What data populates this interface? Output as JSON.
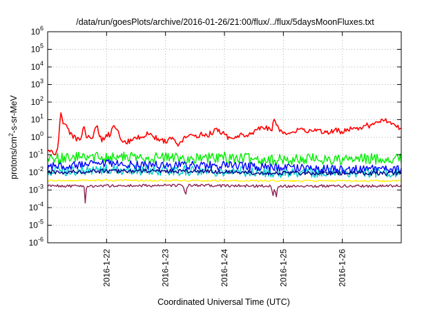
{
  "chart_data": {
    "type": "line",
    "title": "/data/run/goesPlots/archive/2016-01-26/21:00/flux/../flux/5daysMoonFluxes.txt",
    "xlabel": "Coordinated Universal Time (UTC)",
    "ylabel": "protons/cm²-s-sr-MeV",
    "ylabel_parts": {
      "pre": "protons/cm",
      "sup": "2",
      "post": "-s-sr-MeV"
    },
    "yscale": "log",
    "ylim": [
      1e-06,
      1000000.0
    ],
    "xlim": [
      0,
      6
    ],
    "x_unit": "days since 2016-01-21 00:00 UTC",
    "grid": true,
    "y_ticks": [
      {
        "value": 1e-06,
        "base": "10",
        "exp": "-6"
      },
      {
        "value": 1e-05,
        "base": "10",
        "exp": "-5"
      },
      {
        "value": 0.0001,
        "base": "10",
        "exp": "-4"
      },
      {
        "value": 0.001,
        "base": "10",
        "exp": "-3"
      },
      {
        "value": 0.01,
        "base": "10",
        "exp": "-2"
      },
      {
        "value": 0.1,
        "base": "10",
        "exp": "-1"
      },
      {
        "value": 1,
        "base": "10",
        "exp": "0"
      },
      {
        "value": 10,
        "base": "10",
        "exp": "1"
      },
      {
        "value": 100,
        "base": "10",
        "exp": "2"
      },
      {
        "value": 1000,
        "base": "10",
        "exp": "3"
      },
      {
        "value": 10000,
        "base": "10",
        "exp": "4"
      },
      {
        "value": 100000,
        "base": "10",
        "exp": "5"
      },
      {
        "value": 1000000,
        "base": "10",
        "exp": "6"
      }
    ],
    "x_ticks": [
      {
        "value": 1,
        "label": "2016-1-22"
      },
      {
        "value": 2,
        "label": "2016-1-23"
      },
      {
        "value": 3,
        "label": "2016-1-24"
      },
      {
        "value": 4,
        "label": "2016-1-25"
      },
      {
        "value": 5,
        "label": "2016-1-26"
      }
    ],
    "series": [
      {
        "name": "",
        "color": "#ff0000",
        "noise": 0.15,
        "points": [
          [
            0.0,
            0.15
          ],
          [
            0.15,
            0.14
          ],
          [
            0.17,
            0.19
          ],
          [
            0.22,
            25
          ],
          [
            0.26,
            8
          ],
          [
            0.35,
            2.5
          ],
          [
            0.45,
            1.0
          ],
          [
            0.55,
            0.6
          ],
          [
            0.62,
            4
          ],
          [
            0.66,
            1.0
          ],
          [
            0.78,
            1.2
          ],
          [
            0.82,
            6
          ],
          [
            0.88,
            1.5
          ],
          [
            0.92,
            0.7
          ],
          [
            1.0,
            1.5
          ],
          [
            1.06,
            1.2
          ],
          [
            1.12,
            5
          ],
          [
            1.18,
            2.5
          ],
          [
            1.22,
            1.0
          ],
          [
            1.3,
            0.5
          ],
          [
            1.4,
            0.6
          ],
          [
            1.5,
            0.8
          ],
          [
            1.6,
            1.2
          ],
          [
            1.7,
            1.5
          ],
          [
            1.8,
            1.0
          ],
          [
            1.9,
            0.8
          ],
          [
            2.0,
            0.6
          ],
          [
            2.08,
            1.0
          ],
          [
            2.2,
            0.4
          ],
          [
            2.3,
            0.8
          ],
          [
            2.4,
            1.2
          ],
          [
            2.5,
            1.0
          ],
          [
            2.6,
            1.5
          ],
          [
            2.7,
            1.2
          ],
          [
            2.8,
            2.0
          ],
          [
            2.9,
            2.5
          ],
          [
            3.0,
            1.5
          ],
          [
            3.08,
            0.8
          ],
          [
            3.2,
            0.8
          ],
          [
            3.3,
            1.5
          ],
          [
            3.4,
            1.5
          ],
          [
            3.5,
            2.0
          ],
          [
            3.6,
            3.0
          ],
          [
            3.7,
            4.0
          ],
          [
            3.8,
            2.0
          ],
          [
            3.84,
            10
          ],
          [
            3.9,
            5
          ],
          [
            3.95,
            2.0
          ],
          [
            4.1,
            1.8
          ],
          [
            4.2,
            2.5
          ],
          [
            4.3,
            3.0
          ],
          [
            4.4,
            2.5
          ],
          [
            4.5,
            2.0
          ],
          [
            4.6,
            2.5
          ],
          [
            4.7,
            1.8
          ],
          [
            4.8,
            2.0
          ],
          [
            4.9,
            2.5
          ],
          [
            5.0,
            2.0
          ],
          [
            5.1,
            3.0
          ],
          [
            5.2,
            2.8
          ],
          [
            5.3,
            3.5
          ],
          [
            5.4,
            5.0
          ],
          [
            5.5,
            4.0
          ],
          [
            5.6,
            8.0
          ],
          [
            5.7,
            10
          ],
          [
            5.8,
            8.0
          ],
          [
            5.9,
            5.0
          ],
          [
            6.0,
            3.0
          ]
        ]
      },
      {
        "name": "",
        "color": "#00ee00",
        "noise": 0.32,
        "points": [
          [
            0.0,
            0.06
          ],
          [
            0.5,
            0.07
          ],
          [
            1.0,
            0.08
          ],
          [
            1.5,
            0.07
          ],
          [
            2.0,
            0.07
          ],
          [
            2.5,
            0.06
          ],
          [
            3.0,
            0.07
          ],
          [
            3.5,
            0.06
          ],
          [
            4.0,
            0.05
          ],
          [
            4.5,
            0.06
          ],
          [
            5.0,
            0.05
          ],
          [
            5.5,
            0.06
          ],
          [
            6.0,
            0.06
          ]
        ]
      },
      {
        "name": "",
        "color": "#00cccc",
        "noise": 0.3,
        "points": [
          [
            0.0,
            0.012
          ],
          [
            1.0,
            0.014
          ],
          [
            2.0,
            0.013
          ],
          [
            3.0,
            0.012
          ],
          [
            4.0,
            0.01
          ],
          [
            5.0,
            0.01
          ],
          [
            6.0,
            0.01
          ]
        ]
      },
      {
        "name": "",
        "color": "#0000ff",
        "noise": 0.25,
        "points": [
          [
            0.0,
            0.02
          ],
          [
            1.0,
            0.03
          ],
          [
            2.0,
            0.025
          ],
          [
            3.0,
            0.025
          ],
          [
            4.0,
            0.018
          ],
          [
            5.0,
            0.015
          ],
          [
            6.0,
            0.015
          ]
        ]
      },
      {
        "name": "",
        "color": "#00008b",
        "noise": 0.12,
        "points": [
          [
            0.0,
            0.01
          ],
          [
            1.0,
            0.012
          ],
          [
            2.0,
            0.012
          ],
          [
            3.0,
            0.011
          ],
          [
            4.0,
            0.009
          ],
          [
            5.0,
            0.009
          ],
          [
            6.0,
            0.009
          ]
        ]
      },
      {
        "name": "",
        "color": "#ffee00",
        "noise": 0.05,
        "points": [
          [
            0.0,
            0.0035
          ],
          [
            1.0,
            0.0036
          ],
          [
            2.0,
            0.0035
          ],
          [
            3.0,
            0.0034
          ],
          [
            4.0,
            0.0033
          ],
          [
            5.0,
            0.0033
          ],
          [
            6.0,
            0.0033
          ]
        ]
      },
      {
        "name": "",
        "color": "#8b2252",
        "noise": 0.08,
        "points": [
          [
            0.0,
            0.0017
          ],
          [
            0.62,
            0.0017
          ],
          [
            0.64,
            0.00015
          ],
          [
            0.66,
            0.0017
          ],
          [
            1.9,
            0.0018
          ],
          [
            2.3,
            0.0018
          ],
          [
            2.34,
            0.0006
          ],
          [
            2.37,
            0.0018
          ],
          [
            3.8,
            0.0017
          ],
          [
            3.82,
            0.0004
          ],
          [
            3.85,
            0.0017
          ],
          [
            3.88,
            0.0004
          ],
          [
            3.91,
            0.0017
          ],
          [
            6.0,
            0.0017
          ]
        ]
      }
    ]
  }
}
